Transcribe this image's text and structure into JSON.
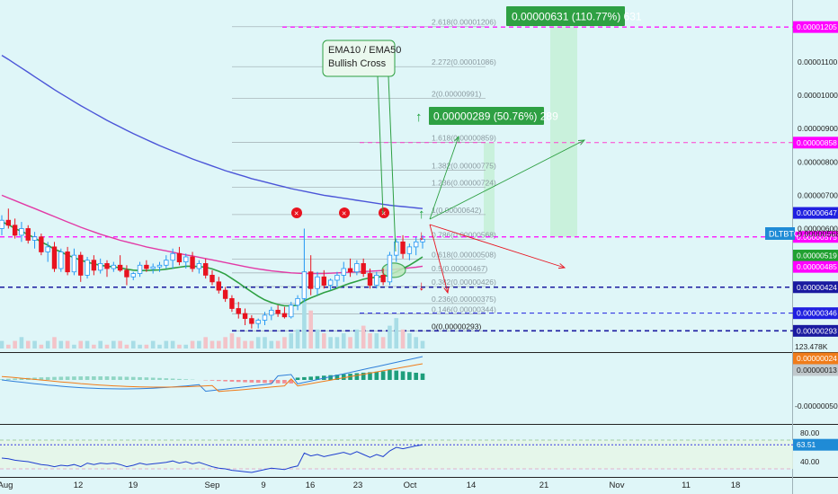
{
  "chart_data": {
    "type": "candlestick",
    "symbol": "DLTBTC",
    "symbol_price": "0.00000568",
    "x_tick_labels": [
      "Aug",
      "12",
      "19",
      "Sep",
      "9",
      "16",
      "23",
      "Oct",
      "14",
      "21",
      "Nov",
      "11",
      "18"
    ],
    "price_axis": {
      "ticks": [
        "0.00001100",
        "0.00001000",
        "0.00000900",
        "0.00000800",
        "0.00000700",
        "0.00000600"
      ],
      "range": [
        2.4e-06,
        1.27e-05
      ]
    },
    "price_badges": [
      {
        "label": "0.00001205",
        "value": 1.205e-05,
        "color": "#ff00ff"
      },
      {
        "label": "0.00000858",
        "value": 8.58e-06,
        "color": "#ff00ff"
      },
      {
        "label": "0.00000647",
        "value": 6.47e-06,
        "color": "#1f1fe0"
      },
      {
        "label": "0.00000575",
        "value": 5.75e-06,
        "color": "#ff00ff"
      },
      {
        "label": "0.00000519",
        "value": 5.19e-06,
        "color": "#20a030"
      },
      {
        "label": "0.00000485",
        "value": 4.85e-06,
        "color": "#ff00ff"
      },
      {
        "label": "0.00000424",
        "value": 4.24e-06,
        "color": "#1a1aa0"
      },
      {
        "label": "0.00000346",
        "value": 3.46e-06,
        "color": "#1f1fe0"
      },
      {
        "label": "0.00000293",
        "value": 2.93e-06,
        "color": "#1a1aa0"
      }
    ],
    "fib_levels": [
      {
        "label": "2.618(0.00001206)",
        "value": 1.206e-05
      },
      {
        "label": "2.272(0.00001086)",
        "value": 1.086e-05
      },
      {
        "label": "2(0.00000991)",
        "value": 9.91e-06
      },
      {
        "label": "1.618(0.00000859)",
        "value": 8.59e-06
      },
      {
        "label": "1.382(0.00000775)",
        "value": 7.75e-06
      },
      {
        "label": "1.236(0.00000724)",
        "value": 7.24e-06
      },
      {
        "label": "1(0.00000642)",
        "value": 6.42e-06
      },
      {
        "label": "0.786(0.00000568)",
        "value": 5.68e-06
      },
      {
        "label": "0.618(0.00000508)",
        "value": 5.08e-06
      },
      {
        "label": "0.5(0.00000467)",
        "value": 4.67e-06
      },
      {
        "label": "0.382(0.00000426)",
        "value": 4.26e-06
      },
      {
        "label": "0.236(0.00000375)",
        "value": 3.75e-06
      },
      {
        "label": "0.146(0.00000344)",
        "value": 3.44e-06
      },
      {
        "label": "0(0.00000293)",
        "value": 2.93e-06
      }
    ],
    "callouts": [
      {
        "text": "0.00000631 (110.77%) 631"
      },
      {
        "text": "0.00000289 (50.76%) 289"
      }
    ],
    "annotation": "EMA10 / EMA50\nBullish Cross",
    "volume_label": "123.478K",
    "macd": {
      "badges": [
        {
          "label": "0.00000024",
          "color": "#f07c1a"
        },
        {
          "label": "0.00000013",
          "color": "#c0c8cc"
        }
      ],
      "tick": "-0.00000050"
    },
    "rsi": {
      "value": "63.51",
      "ticks": [
        "80.00",
        "40.00"
      ],
      "range": [
        20,
        90
      ]
    },
    "candles": [
      [
        6e-06,
        6.4e-06,
        5.8e-06,
        6.25e-06
      ],
      [
        6.25e-06,
        6.6e-06,
        6e-06,
        6.1e-06
      ],
      [
        6.1e-06,
        6.3e-06,
        5.7e-06,
        5.8e-06
      ],
      [
        5.8e-06,
        6.2e-06,
        5.6e-06,
        6e-06
      ],
      [
        6e-06,
        6.1e-06,
        5.55e-06,
        5.65e-06
      ],
      [
        5.65e-06,
        5.9e-06,
        5.4e-06,
        5.75e-06
      ],
      [
        5.75e-06,
        5.85e-06,
        5.2e-06,
        5.3e-06
      ],
      [
        5.3e-06,
        5.6e-06,
        5e-06,
        5.45e-06
      ],
      [
        5.45e-06,
        5.6e-06,
        4.7e-06,
        4.8e-06
      ],
      [
        4.8e-06,
        5.4e-06,
        4.7e-06,
        5.3e-06
      ],
      [
        5.3e-06,
        5.45e-06,
        4.6e-06,
        4.7e-06
      ],
      [
        4.7e-06,
        5.4e-06,
        4.6e-06,
        5.2e-06
      ],
      [
        5.2e-06,
        5.3e-06,
        4.4e-06,
        4.6e-06
      ],
      [
        4.6e-06,
        5.15e-06,
        4.5e-06,
        5.05e-06
      ],
      [
        5.05e-06,
        5.2e-06,
        4.6e-06,
        4.75e-06
      ],
      [
        4.75e-06,
        5.1e-06,
        4.65e-06,
        4.95e-06
      ],
      [
        4.95e-06,
        5.05e-06,
        4.55e-06,
        4.8e-06
      ],
      [
        4.8e-06,
        5e-06,
        4.7e-06,
        4.9e-06
      ],
      [
        4.9e-06,
        5.2e-06,
        4.7e-06,
        4.75e-06
      ],
      [
        4.75e-06,
        4.9e-06,
        4.3e-06,
        4.55e-06
      ],
      [
        4.55e-06,
        4.7e-06,
        4.45e-06,
        4.65e-06
      ],
      [
        4.65e-06,
        5e-06,
        4.55e-06,
        4.9e-06
      ],
      [
        4.9e-06,
        5.05e-06,
        4.7e-06,
        4.8e-06
      ],
      [
        4.8e-06,
        4.95e-06,
        4.65e-06,
        4.85e-06
      ],
      [
        4.85e-06,
        5e-06,
        4.7e-06,
        4.9e-06
      ],
      [
        4.9e-06,
        5.2e-06,
        4.8e-06,
        5.05e-06
      ],
      [
        5.05e-06,
        5.4e-06,
        4.8e-06,
        5.25e-06
      ],
      [
        5.25e-06,
        5.45e-06,
        4.9e-06,
        5e-06
      ],
      [
        5e-06,
        5.25e-06,
        4.8e-06,
        5.15e-06
      ],
      [
        5.15e-06,
        5.3e-06,
        4.7e-06,
        4.8e-06
      ],
      [
        4.8e-06,
        5.05e-06,
        4.65e-06,
        4.95e-06
      ],
      [
        4.95e-06,
        5.1e-06,
        4.5e-06,
        4.6e-06
      ],
      [
        4.6e-06,
        4.75e-06,
        4.3e-06,
        4.4e-06
      ],
      [
        4.4e-06,
        4.55e-06,
        4.05e-06,
        4.15e-06
      ],
      [
        4.15e-06,
        4.25e-06,
        3.8e-06,
        3.9e-06
      ],
      [
        3.9e-06,
        4e-06,
        3.5e-06,
        3.6e-06
      ],
      [
        3.6e-06,
        3.8e-06,
        3.3e-06,
        3.45e-06
      ],
      [
        3.45e-06,
        3.6e-06,
        3.1e-06,
        3.3e-06
      ],
      [
        3.3e-06,
        3.4e-06,
        3e-06,
        3.15e-06
      ],
      [
        3.15e-06,
        3.3e-06,
        3e-06,
        3.25e-06
      ],
      [
        3.25e-06,
        3.5e-06,
        3.1e-06,
        3.4e-06
      ],
      [
        3.4e-06,
        3.65e-06,
        3.25e-06,
        3.55e-06
      ],
      [
        3.55e-06,
        3.7e-06,
        3.35e-06,
        3.45e-06
      ],
      [
        3.45e-06,
        3.65e-06,
        3.3e-06,
        3.35e-06
      ],
      [
        3.35e-06,
        3.8e-06,
        3.3e-06,
        3.7e-06
      ],
      [
        3.7e-06,
        4e-06,
        3.55e-06,
        3.9e-06
      ],
      [
        3.9e-06,
        6e-06,
        3.8e-06,
        4.7e-06
      ],
      [
        4.7e-06,
        5.2e-06,
        4e-06,
        4.2e-06
      ],
      [
        4.2e-06,
        4.7e-06,
        4e-06,
        4.55e-06
      ],
      [
        4.55e-06,
        4.75e-06,
        4.2e-06,
        4.3e-06
      ],
      [
        4.3e-06,
        4.5e-06,
        4.15e-06,
        4.45e-06
      ],
      [
        4.45e-06,
        4.7e-06,
        4.25e-06,
        4.6e-06
      ],
      [
        4.6e-06,
        5e-06,
        4.4e-06,
        4.8e-06
      ],
      [
        4.8e-06,
        5.1e-06,
        4.55e-06,
        4.7e-06
      ],
      [
        4.7e-06,
        5.05e-06,
        4.6e-06,
        4.95e-06
      ],
      [
        4.95e-06,
        5.1e-06,
        4.55e-06,
        4.65e-06
      ],
      [
        4.65e-06,
        4.8e-06,
        4.2e-06,
        4.3e-06
      ],
      [
        4.3e-06,
        4.7e-06,
        4.2e-06,
        4.6e-06
      ],
      [
        4.6e-06,
        4.8e-06,
        4.3e-06,
        4.4e-06
      ],
      [
        4.4e-06,
        5.3e-06,
        4.3e-06,
        5.2e-06
      ],
      [
        5.2e-06,
        5.7e-06,
        5e-06,
        5.6e-06
      ],
      [
        5.6e-06,
        5.8e-06,
        5.1e-06,
        5.25e-06
      ],
      [
        5.25e-06,
        5.55e-06,
        5.05e-06,
        5.45e-06
      ],
      [
        5.45e-06,
        5.75e-06,
        5.2e-06,
        5.6e-06
      ],
      [
        5.6e-06,
        5.8e-06,
        5.4e-06,
        5.68e-06
      ]
    ],
    "volume": [
      2,
      1,
      2,
      3,
      2,
      2,
      1,
      2,
      3,
      2,
      2,
      1,
      2,
      2,
      1,
      2,
      1,
      2,
      2,
      1,
      2,
      1,
      1,
      2,
      1,
      2,
      2,
      1,
      1,
      2,
      2,
      3,
      2,
      2,
      3,
      4,
      3,
      2,
      2,
      3,
      3,
      2,
      2,
      3,
      4,
      5,
      13,
      10,
      5,
      4,
      3,
      3,
      4,
      3,
      5,
      6,
      4,
      4,
      3,
      6,
      8,
      5,
      4,
      3,
      2
    ],
    "ema10": [
      6.2e-06,
      6.12e-06,
      6e-06,
      5.92e-06,
      5.82e-06,
      5.72e-06,
      5.6e-06,
      5.5e-06,
      5.38e-06,
      5.3e-06,
      5.2e-06,
      5.13e-06,
      5.05e-06,
      4.99e-06,
      4.94e-06,
      4.9e-06,
      4.87e-06,
      4.85e-06,
      4.82e-06,
      4.78e-06,
      4.75e-06,
      4.74e-06,
      4.74e-06,
      4.75e-06,
      4.76e-06,
      4.78e-06,
      4.81e-06,
      4.84e-06,
      4.87e-06,
      4.87e-06,
      4.86e-06,
      4.84e-06,
      4.79e-06,
      4.72e-06,
      4.63e-06,
      4.5e-06,
      4.37e-06,
      4.23e-06,
      4.1e-06,
      3.97e-06,
      3.86e-06,
      3.78e-06,
      3.72e-06,
      3.68e-06,
      3.68e-06,
      3.7e-06,
      3.83e-06,
      3.92e-06,
      4e-06,
      4.08e-06,
      4.14e-06,
      4.21e-06,
      4.29e-06,
      4.36e-06,
      4.42e-06,
      4.48e-06,
      4.52e-06,
      4.54e-06,
      4.56e-06,
      4.61e-06,
      4.7e-06,
      4.8e-06,
      4.9e-06,
      5.02e-06,
      5.15e-06
    ],
    "ema50": [
      7e-06,
      6.92e-06,
      6.84e-06,
      6.76e-06,
      6.68e-06,
      6.6e-06,
      6.52e-06,
      6.44e-06,
      6.36e-06,
      6.28e-06,
      6.2e-06,
      6.12e-06,
      6.04e-06,
      5.97e-06,
      5.9e-06,
      5.83e-06,
      5.77e-06,
      5.71e-06,
      5.65e-06,
      5.6e-06,
      5.55e-06,
      5.5e-06,
      5.45e-06,
      5.41e-06,
      5.37e-06,
      5.33e-06,
      5.29e-06,
      5.25e-06,
      5.21e-06,
      5.18e-06,
      5.14e-06,
      5.1e-06,
      5.06e-06,
      5.02e-06,
      4.98e-06,
      4.94e-06,
      4.9e-06,
      4.86e-06,
      4.82e-06,
      4.79e-06,
      4.76e-06,
      4.73e-06,
      4.71e-06,
      4.69e-06,
      4.67e-06,
      4.66e-06,
      4.65e-06,
      4.65e-06,
      4.65e-06,
      4.65e-06,
      4.66e-06,
      4.67e-06,
      4.68e-06,
      4.69e-06,
      4.7e-06,
      4.71e-06,
      4.72e-06,
      4.73e-06,
      4.74e-06,
      4.76e-06,
      4.78e-06,
      4.8e-06,
      4.82e-06,
      4.84e-06,
      4.87e-06
    ],
    "ema200": [
      1.12e-05,
      1.108e-05,
      1.095e-05,
      1.082e-05,
      1.069e-05,
      1.056e-05,
      1.043e-05,
      1.03e-05,
      1.017e-05,
      1.005e-05,
      9.93e-06,
      9.81e-06,
      9.69e-06,
      9.58e-06,
      9.47e-06,
      9.36e-06,
      9.25e-06,
      9.15e-06,
      9.05e-06,
      8.95e-06,
      8.85e-06,
      8.76e-06,
      8.67e-06,
      8.58e-06,
      8.49e-06,
      8.41e-06,
      8.33e-06,
      8.25e-06,
      8.17e-06,
      8.09e-06,
      8.02e-06,
      7.95e-06,
      7.88e-06,
      7.81e-06,
      7.74e-06,
      7.68e-06,
      7.62e-06,
      7.56e-06,
      7.5e-06,
      7.45e-06,
      7.4e-06,
      7.35e-06,
      7.3e-06,
      7.25e-06,
      7.2e-06,
      7.16e-06,
      7.12e-06,
      7.08e-06,
      7.04e-06,
      7e-06,
      6.97e-06,
      6.94e-06,
      6.91e-06,
      6.88e-06,
      6.85e-06,
      6.82e-06,
      6.79e-06,
      6.76e-06,
      6.73e-06,
      6.7e-06,
      6.68e-06,
      6.66e-06,
      6.64e-06,
      6.62e-06,
      6.6e-06
    ],
    "rsi_values": [
      45,
      44,
      42,
      41,
      40,
      38,
      36,
      35,
      33,
      35,
      34,
      36,
      33,
      38,
      36,
      38,
      37,
      38,
      36,
      33,
      35,
      38,
      36,
      37,
      38,
      39,
      41,
      38,
      40,
      37,
      39,
      36,
      33,
      31,
      30,
      28,
      27,
      26,
      25,
      27,
      29,
      31,
      30,
      29,
      32,
      34,
      52,
      48,
      50,
      47,
      49,
      51,
      53,
      50,
      54,
      50,
      46,
      50,
      47,
      55,
      60,
      58,
      60,
      62,
      63.51
    ]
  }
}
